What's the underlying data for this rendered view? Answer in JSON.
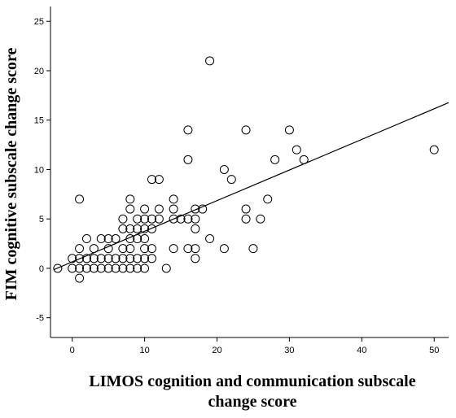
{
  "chart_data": {
    "type": "scatter",
    "title": "",
    "xlabel_lines": [
      "LIMOS cognition and communication subscale",
      "change score"
    ],
    "ylabel": "FIM cognitive subscale change score",
    "xlim": [
      -3,
      52
    ],
    "ylim": [
      -7,
      26.5
    ],
    "xticks": [
      0,
      10,
      20,
      30,
      40,
      50
    ],
    "yticks": [
      -5,
      0,
      5,
      10,
      15,
      20,
      25
    ],
    "grid": false,
    "legend": "none",
    "fit_line": {
      "slope": 0.31,
      "intercept": 0.65
    },
    "points": [
      [
        -2,
        0
      ],
      [
        0,
        0
      ],
      [
        0,
        1
      ],
      [
        1,
        -1
      ],
      [
        1,
        0
      ],
      [
        1,
        1
      ],
      [
        1,
        2
      ],
      [
        1,
        7
      ],
      [
        2,
        0
      ],
      [
        2,
        1
      ],
      [
        2,
        3
      ],
      [
        3,
        0
      ],
      [
        3,
        1
      ],
      [
        3,
        2
      ],
      [
        4,
        0
      ],
      [
        4,
        1
      ],
      [
        4,
        3
      ],
      [
        5,
        0
      ],
      [
        5,
        1
      ],
      [
        5,
        2
      ],
      [
        5,
        3
      ],
      [
        6,
        0
      ],
      [
        6,
        1
      ],
      [
        6,
        3
      ],
      [
        7,
        0
      ],
      [
        7,
        1
      ],
      [
        7,
        2
      ],
      [
        7,
        4
      ],
      [
        7,
        5
      ],
      [
        8,
        0
      ],
      [
        8,
        1
      ],
      [
        8,
        2
      ],
      [
        8,
        3
      ],
      [
        8,
        4
      ],
      [
        8,
        6
      ],
      [
        8,
        7
      ],
      [
        9,
        0
      ],
      [
        9,
        1
      ],
      [
        9,
        3
      ],
      [
        9,
        4
      ],
      [
        9,
        5
      ],
      [
        10,
        0
      ],
      [
        10,
        1
      ],
      [
        10,
        2
      ],
      [
        10,
        3
      ],
      [
        10,
        4
      ],
      [
        10,
        5
      ],
      [
        10,
        6
      ],
      [
        11,
        1
      ],
      [
        11,
        2
      ],
      [
        11,
        4
      ],
      [
        11,
        5
      ],
      [
        11,
        9
      ],
      [
        12,
        5
      ],
      [
        12,
        6
      ],
      [
        12,
        9
      ],
      [
        13,
        0
      ],
      [
        14,
        2
      ],
      [
        14,
        5
      ],
      [
        14,
        6
      ],
      [
        14,
        7
      ],
      [
        15,
        5
      ],
      [
        16,
        2
      ],
      [
        16,
        5
      ],
      [
        16,
        11
      ],
      [
        16,
        14
      ],
      [
        17,
        1
      ],
      [
        17,
        2
      ],
      [
        17,
        4
      ],
      [
        17,
        5
      ],
      [
        17,
        6
      ],
      [
        18,
        6
      ],
      [
        19,
        3
      ],
      [
        19,
        21
      ],
      [
        21,
        2
      ],
      [
        21,
        10
      ],
      [
        22,
        9
      ],
      [
        24,
        5
      ],
      [
        24,
        6
      ],
      [
        24,
        14
      ],
      [
        25,
        2
      ],
      [
        26,
        5
      ],
      [
        27,
        7
      ],
      [
        28,
        11
      ],
      [
        30,
        14
      ],
      [
        31,
        12
      ],
      [
        32,
        11
      ],
      [
        50,
        12
      ]
    ]
  }
}
